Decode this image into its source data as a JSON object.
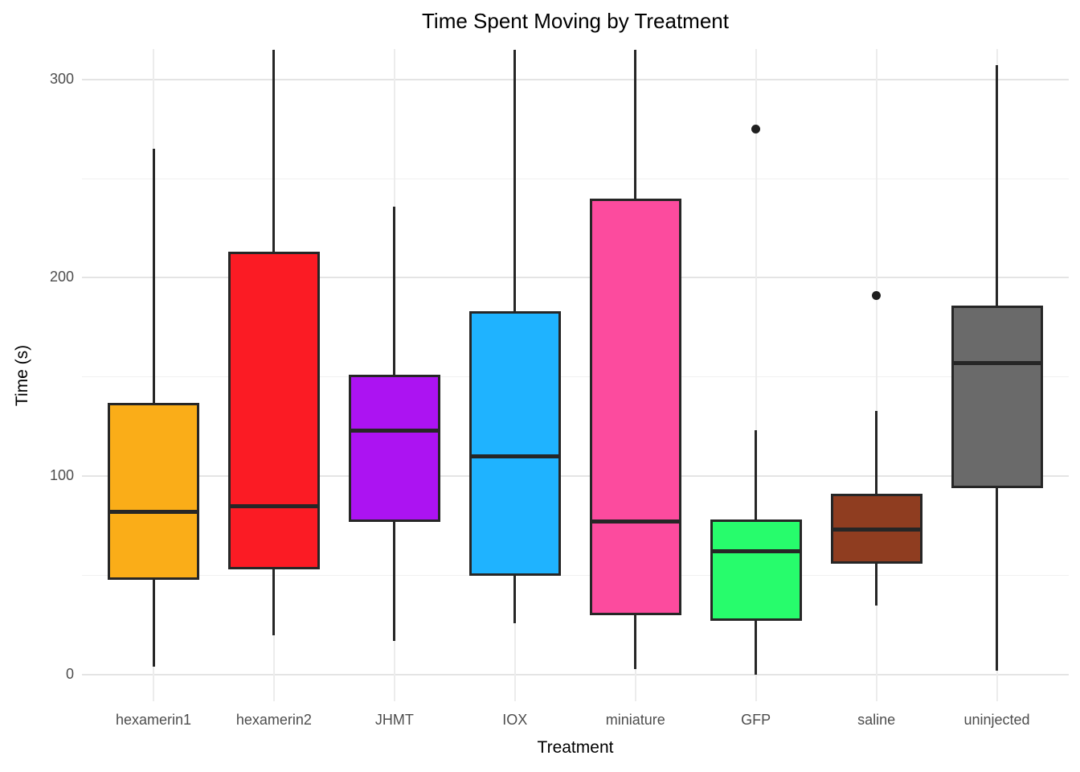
{
  "chart": {
    "title": "Time Spent Moving by Treatment",
    "ylabel": "Time (s)",
    "xlabel": "Treatment"
  },
  "chart_data": {
    "type": "boxplot",
    "title": "Time Spent Moving by Treatment",
    "xlabel": "Treatment",
    "ylabel": "Time (s)",
    "ylim": [
      0,
      315
    ],
    "yticks": [
      0,
      100,
      200,
      300
    ],
    "yticks_minor": [
      50,
      150,
      250
    ],
    "grid": true,
    "legend": "none",
    "categories": [
      "hexamerin1",
      "hexamerin2",
      "JHMT",
      "IOX",
      "miniature",
      "GFP",
      "saline",
      "uninjected"
    ],
    "series": [
      {
        "label": "hexamerin1",
        "fill": "#FAAD18",
        "whisker_low": 4,
        "q1": 48,
        "median": 82,
        "q3": 137,
        "whisker_high": 265,
        "outliers": []
      },
      {
        "label": "hexamerin2",
        "fill": "#FB1B24",
        "whisker_low": 20,
        "q1": 53,
        "median": 85,
        "q3": 213,
        "whisker_high": 315,
        "outliers": []
      },
      {
        "label": "JHMT",
        "fill": "#AC13F2",
        "whisker_low": 17,
        "q1": 77,
        "median": 123,
        "q3": 151,
        "whisker_high": 236,
        "outliers": []
      },
      {
        "label": "IOX",
        "fill": "#1FB3FF",
        "whisker_low": 26,
        "q1": 50,
        "median": 110,
        "q3": 183,
        "whisker_high": 315,
        "outliers": []
      },
      {
        "label": "miniature",
        "fill": "#FC4B9E",
        "whisker_low": 3,
        "q1": 30,
        "median": 77,
        "q3": 240,
        "whisker_high": 315,
        "outliers": []
      },
      {
        "label": "GFP",
        "fill": "#27FC6C",
        "whisker_low": 0,
        "q1": 27,
        "median": 62,
        "q3": 78,
        "whisker_high": 123,
        "outliers": [
          275
        ]
      },
      {
        "label": "saline",
        "fill": "#8F3D20",
        "whisker_low": 35,
        "q1": 56,
        "median": 73,
        "q3": 91,
        "whisker_high": 133,
        "outliers": [
          191
        ]
      },
      {
        "label": "uninjected",
        "fill": "#6A6A6A",
        "whisker_low": 2,
        "q1": 94,
        "median": 157,
        "q3": 186,
        "whisker_high": 307,
        "outliers": []
      }
    ],
    "colors": {
      "box_border": "#262626",
      "whisker": "#262626",
      "outlier": "#1f1f1f",
      "grid_major": "#e4e4e4",
      "grid_minor": "#f0f0f0",
      "tick_text": "#4d4d4d",
      "title_text": "#000000"
    }
  }
}
